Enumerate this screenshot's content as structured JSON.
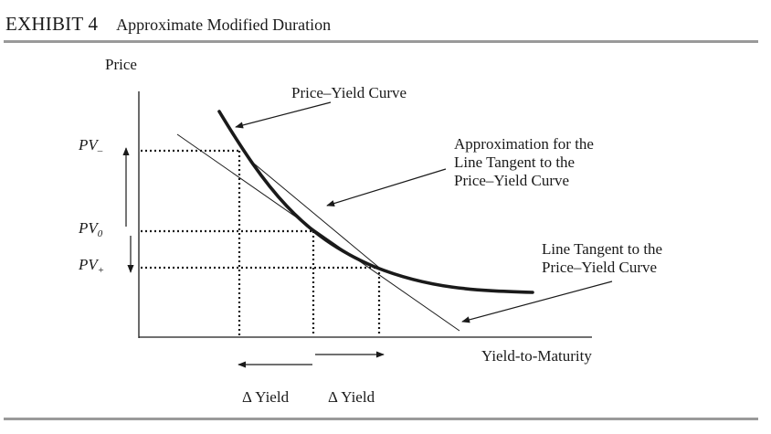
{
  "exhibit": {
    "label": "EXHIBIT 4",
    "title": "Approximate Modified Duration"
  },
  "diagram": {
    "y_axis_label": "Price",
    "x_axis_label": "Yield-to-Maturity",
    "pv_minus": {
      "base": "PV",
      "sub": "–"
    },
    "pv_zero": {
      "base": "PV",
      "sub": "0"
    },
    "pv_plus": {
      "base": "PV",
      "sub": "+"
    },
    "price_yield_curve_label": "Price–Yield Curve",
    "approximation_label": [
      "Approximation for the",
      "Line Tangent to the",
      "Price–Yield Curve"
    ],
    "tangent_label": [
      "Line Tangent to the",
      "Price–Yield Curve"
    ],
    "delta_yield_left": "Δ Yield",
    "delta_yield_right": "Δ Yield"
  }
}
